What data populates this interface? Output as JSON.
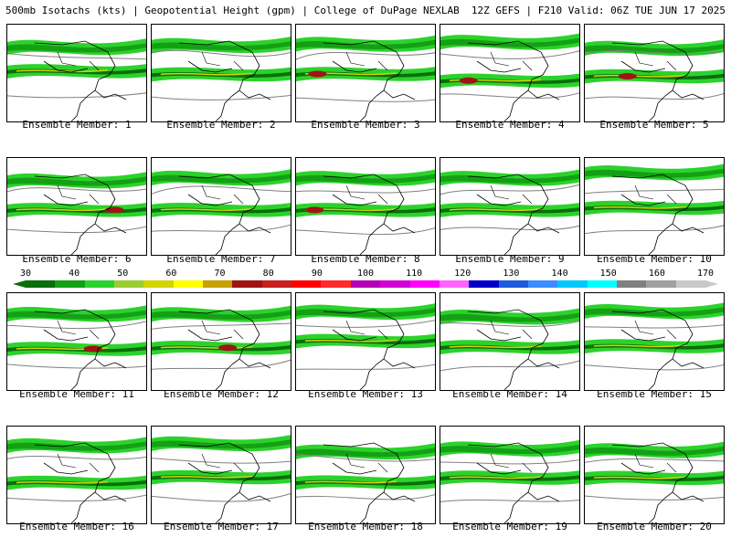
{
  "header": {
    "left": "500mb Isotachs (kts) | Geopotential Height (gpm) | College of DuPage NEXLAB",
    "right": "12Z GEFS | F210 Valid: 06Z TUE JUN 17 2025"
  },
  "members": [
    "Ensemble Member: 1",
    "Ensemble Member: 2",
    "Ensemble Member: 3",
    "Ensemble Member: 4",
    "Ensemble Member: 5",
    "Ensemble Member: 6",
    "Ensemble Member: 7",
    "Ensemble Member: 8",
    "Ensemble Member: 9",
    "Ensemble Member: 10",
    "Ensemble Member: 11",
    "Ensemble Member: 12",
    "Ensemble Member: 13",
    "Ensemble Member: 14",
    "Ensemble Member: 15",
    "Ensemble Member: 16",
    "Ensemble Member: 17",
    "Ensemble Member: 18",
    "Ensemble Member: 19",
    "Ensemble Member: 20"
  ],
  "colorbar": {
    "labels": [
      "30",
      "40",
      "50",
      "60",
      "70",
      "80",
      "90",
      "100",
      "110",
      "120",
      "130",
      "140",
      "150",
      "160",
      "170"
    ],
    "colors": [
      "#0a6e0a",
      "#14a014",
      "#2cd22c",
      "#9acd32",
      "#d4d400",
      "#ffff00",
      "#c8a000",
      "#a01414",
      "#c81e1e",
      "#ff0000",
      "#ff2a2a",
      "#b400b4",
      "#d200d2",
      "#ff00ff",
      "#ff64ff",
      "#0000c8",
      "#1e5adc",
      "#3c8cff",
      "#00c8ff",
      "#00ffff",
      "#808080",
      "#a0a0a0",
      "#c8c8c8"
    ]
  }
}
